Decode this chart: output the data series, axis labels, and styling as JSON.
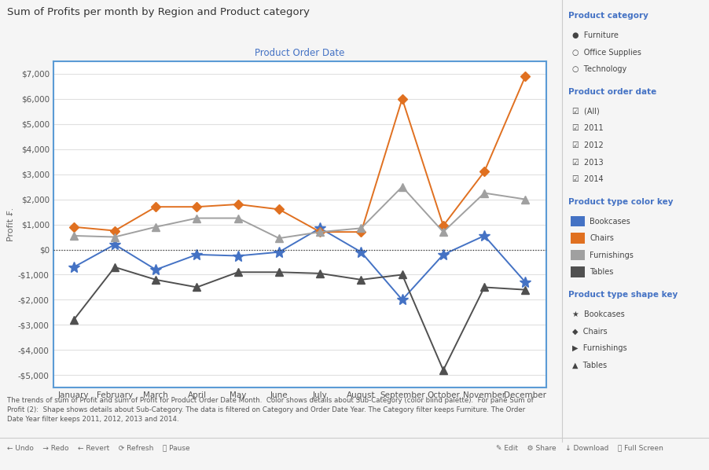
{
  "title": "Sum of Profits per month by Region and Product category",
  "subtitle": "Product Order Date",
  "ylabel": "Profit ₣.",
  "months": [
    "January",
    "February",
    "March",
    "April",
    "May",
    "June",
    "July",
    "August",
    "September",
    "October",
    "November",
    "December"
  ],
  "series": {
    "Bookcases": {
      "color": "#4472C4",
      "marker": "*",
      "markersize": 10,
      "values": [
        -700,
        200,
        -800,
        -200,
        -250,
        -100,
        850,
        -100,
        -2000,
        -200,
        550,
        -1300
      ]
    },
    "Chairs": {
      "color": "#E07020",
      "marker": "D",
      "markersize": 6,
      "values": [
        900,
        750,
        1700,
        1700,
        1800,
        1600,
        700,
        700,
        6000,
        950,
        3100,
        6900
      ]
    },
    "Furnishings": {
      "color": "#A0A0A0",
      "marker": "^",
      "markersize": 7,
      "values": [
        550,
        500,
        900,
        1250,
        1250,
        450,
        700,
        850,
        2500,
        700,
        2250,
        2000
      ]
    },
    "Tables": {
      "color": "#505050",
      "marker": "^",
      "markersize": 7,
      "values": [
        -2800,
        -700,
        -1200,
        -1500,
        -900,
        -900,
        -950,
        -1200,
        -1000,
        -4800,
        -1500,
        -1600
      ]
    }
  },
  "ylim": [
    -5500,
    7500
  ],
  "yticks": [
    -5000,
    -4000,
    -3000,
    -2000,
    -1000,
    0,
    1000,
    2000,
    3000,
    4000,
    5000,
    6000,
    7000
  ],
  "ytick_labels": [
    "-$5,000",
    "-$4,000",
    "-$3,000",
    "-$2,000",
    "-$1,000",
    "$0",
    "$1,000",
    "$2,000",
    "$3,000",
    "$4,000",
    "$5,000",
    "$6,000",
    "$7,000"
  ],
  "plot_bg": "#FFFFFF",
  "outer_bg": "#F5F5F5",
  "border_color": "#5B9BD5",
  "grid_color": "#E0E0E0",
  "zero_line_color": "#333333",
  "panel_title_color": "#4472C4",
  "panel_text_color": "#444444",
  "caption_text": "The trends of sum of Profit and sum of Profit for Product Order Date Month.  Color shows details about Sub-Category (color blind palette).  For pane Sum of\nProfit (2):  Shape shows details about Sub-Category. The data is filtered on Category and Order Date Year. The Category filter keeps Furniture. The Order\nDate Year filter keeps 2011, 2012, 2013 and 2014.",
  "color_key": {
    "Bookcases": "#4472C4",
    "Chairs": "#E07020",
    "Furnishings": "#A0A0A0",
    "Tables": "#505050"
  }
}
